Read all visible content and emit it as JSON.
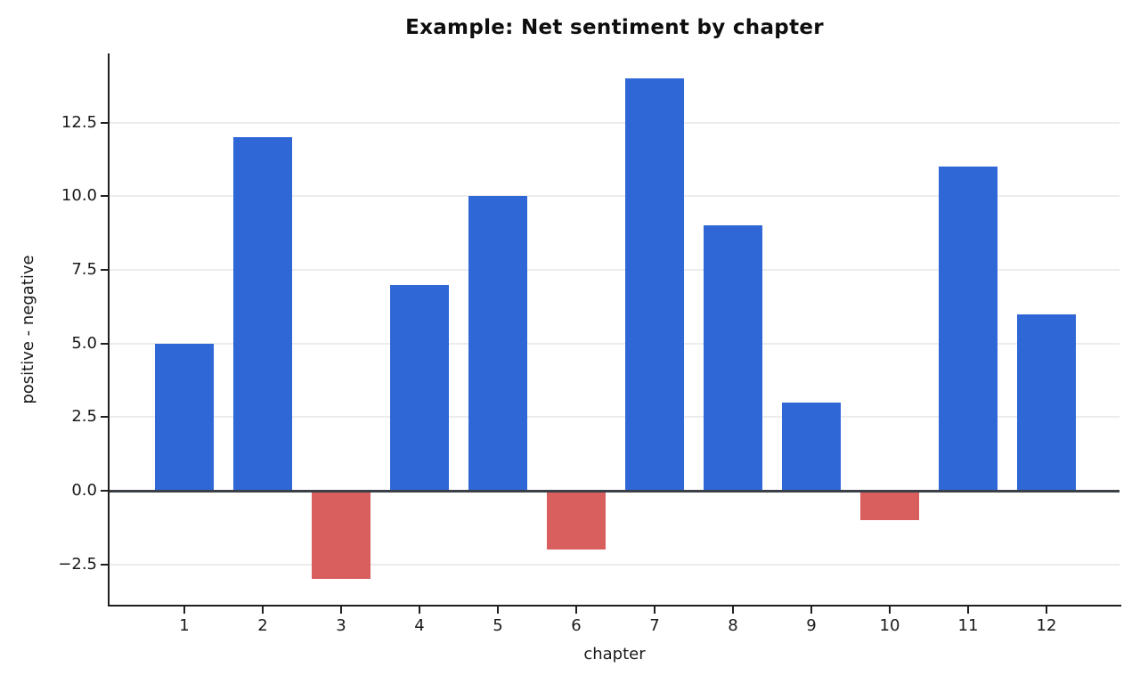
{
  "chart_data": {
    "type": "bar",
    "title": "Example: Net sentiment by chapter",
    "xlabel": "chapter",
    "ylabel": "positive - negative",
    "categories": [
      "1",
      "2",
      "3",
      "4",
      "5",
      "6",
      "7",
      "8",
      "9",
      "10",
      "11",
      "12"
    ],
    "values": [
      5,
      12,
      -3,
      7,
      10,
      -2,
      14,
      9,
      3,
      -1,
      11,
      6
    ],
    "positive_color": "#3067d6",
    "negative_color": "#d95f5f",
    "ylim": [
      -3.87,
      14.85
    ],
    "yticks": [
      -2.5,
      0.0,
      2.5,
      5.0,
      7.5,
      10.0,
      12.5
    ],
    "grid": "horizontal",
    "zero_line": true,
    "legend": "none"
  }
}
